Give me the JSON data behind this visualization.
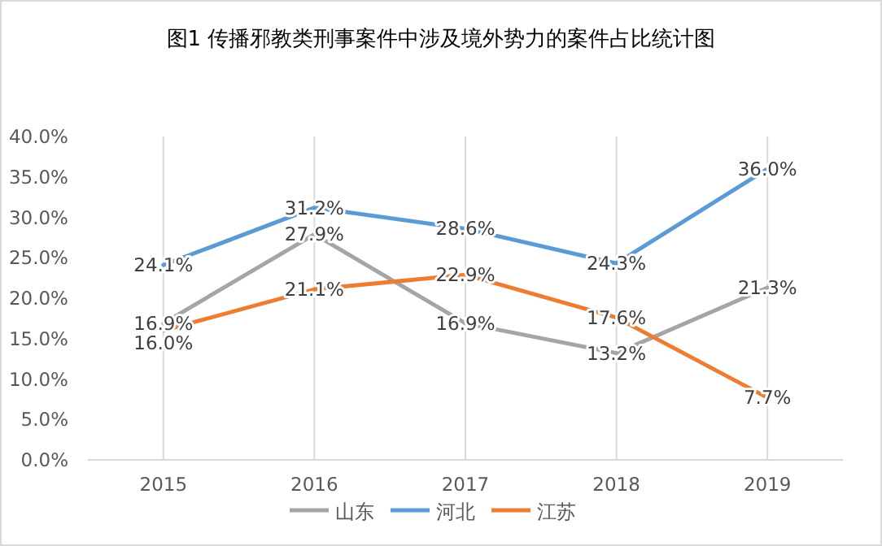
{
  "chart_data": {
    "type": "line",
    "title": "图1  传播邪教类刑事案件中涉及境外势力的案件占比统计图",
    "categories": [
      "2015",
      "2016",
      "2017",
      "2018",
      "2019"
    ],
    "series": [
      {
        "name": "山东",
        "color": "#a5a5a5",
        "values": [
          16.9,
          27.9,
          16.9,
          13.2,
          21.3
        ],
        "value_labels": [
          "16.9%",
          "27.9%",
          "16.9%",
          "13.2%",
          "21.3%"
        ]
      },
      {
        "name": "河北",
        "color": "#5b9bd5",
        "values": [
          24.1,
          31.2,
          28.6,
          24.3,
          36.0
        ],
        "value_labels": [
          "24.1%",
          "31.2%",
          "28.6%",
          "24.3%",
          "36.0%"
        ]
      },
      {
        "name": "江苏",
        "color": "#ed7d31",
        "values": [
          16.0,
          21.1,
          22.9,
          17.6,
          7.7
        ],
        "value_labels": [
          "16.0%",
          "21.1%",
          "22.9%",
          "17.6%",
          "7.7%"
        ]
      }
    ],
    "ylim": [
      0,
      40
    ],
    "yticks": [
      {
        "value": 0,
        "label": "0.0%"
      },
      {
        "value": 5,
        "label": "5.0%"
      },
      {
        "value": 10,
        "label": "10.0%"
      },
      {
        "value": 15,
        "label": "15.0%"
      },
      {
        "value": 20,
        "label": "20.0%"
      },
      {
        "value": 25,
        "label": "25.0%"
      },
      {
        "value": 30,
        "label": "30.0%"
      },
      {
        "value": 35,
        "label": "35.0%"
      },
      {
        "value": 40,
        "label": "40.0%"
      }
    ],
    "grid": "x",
    "legend": "bottom",
    "marker": "none",
    "line_style": "solid"
  }
}
